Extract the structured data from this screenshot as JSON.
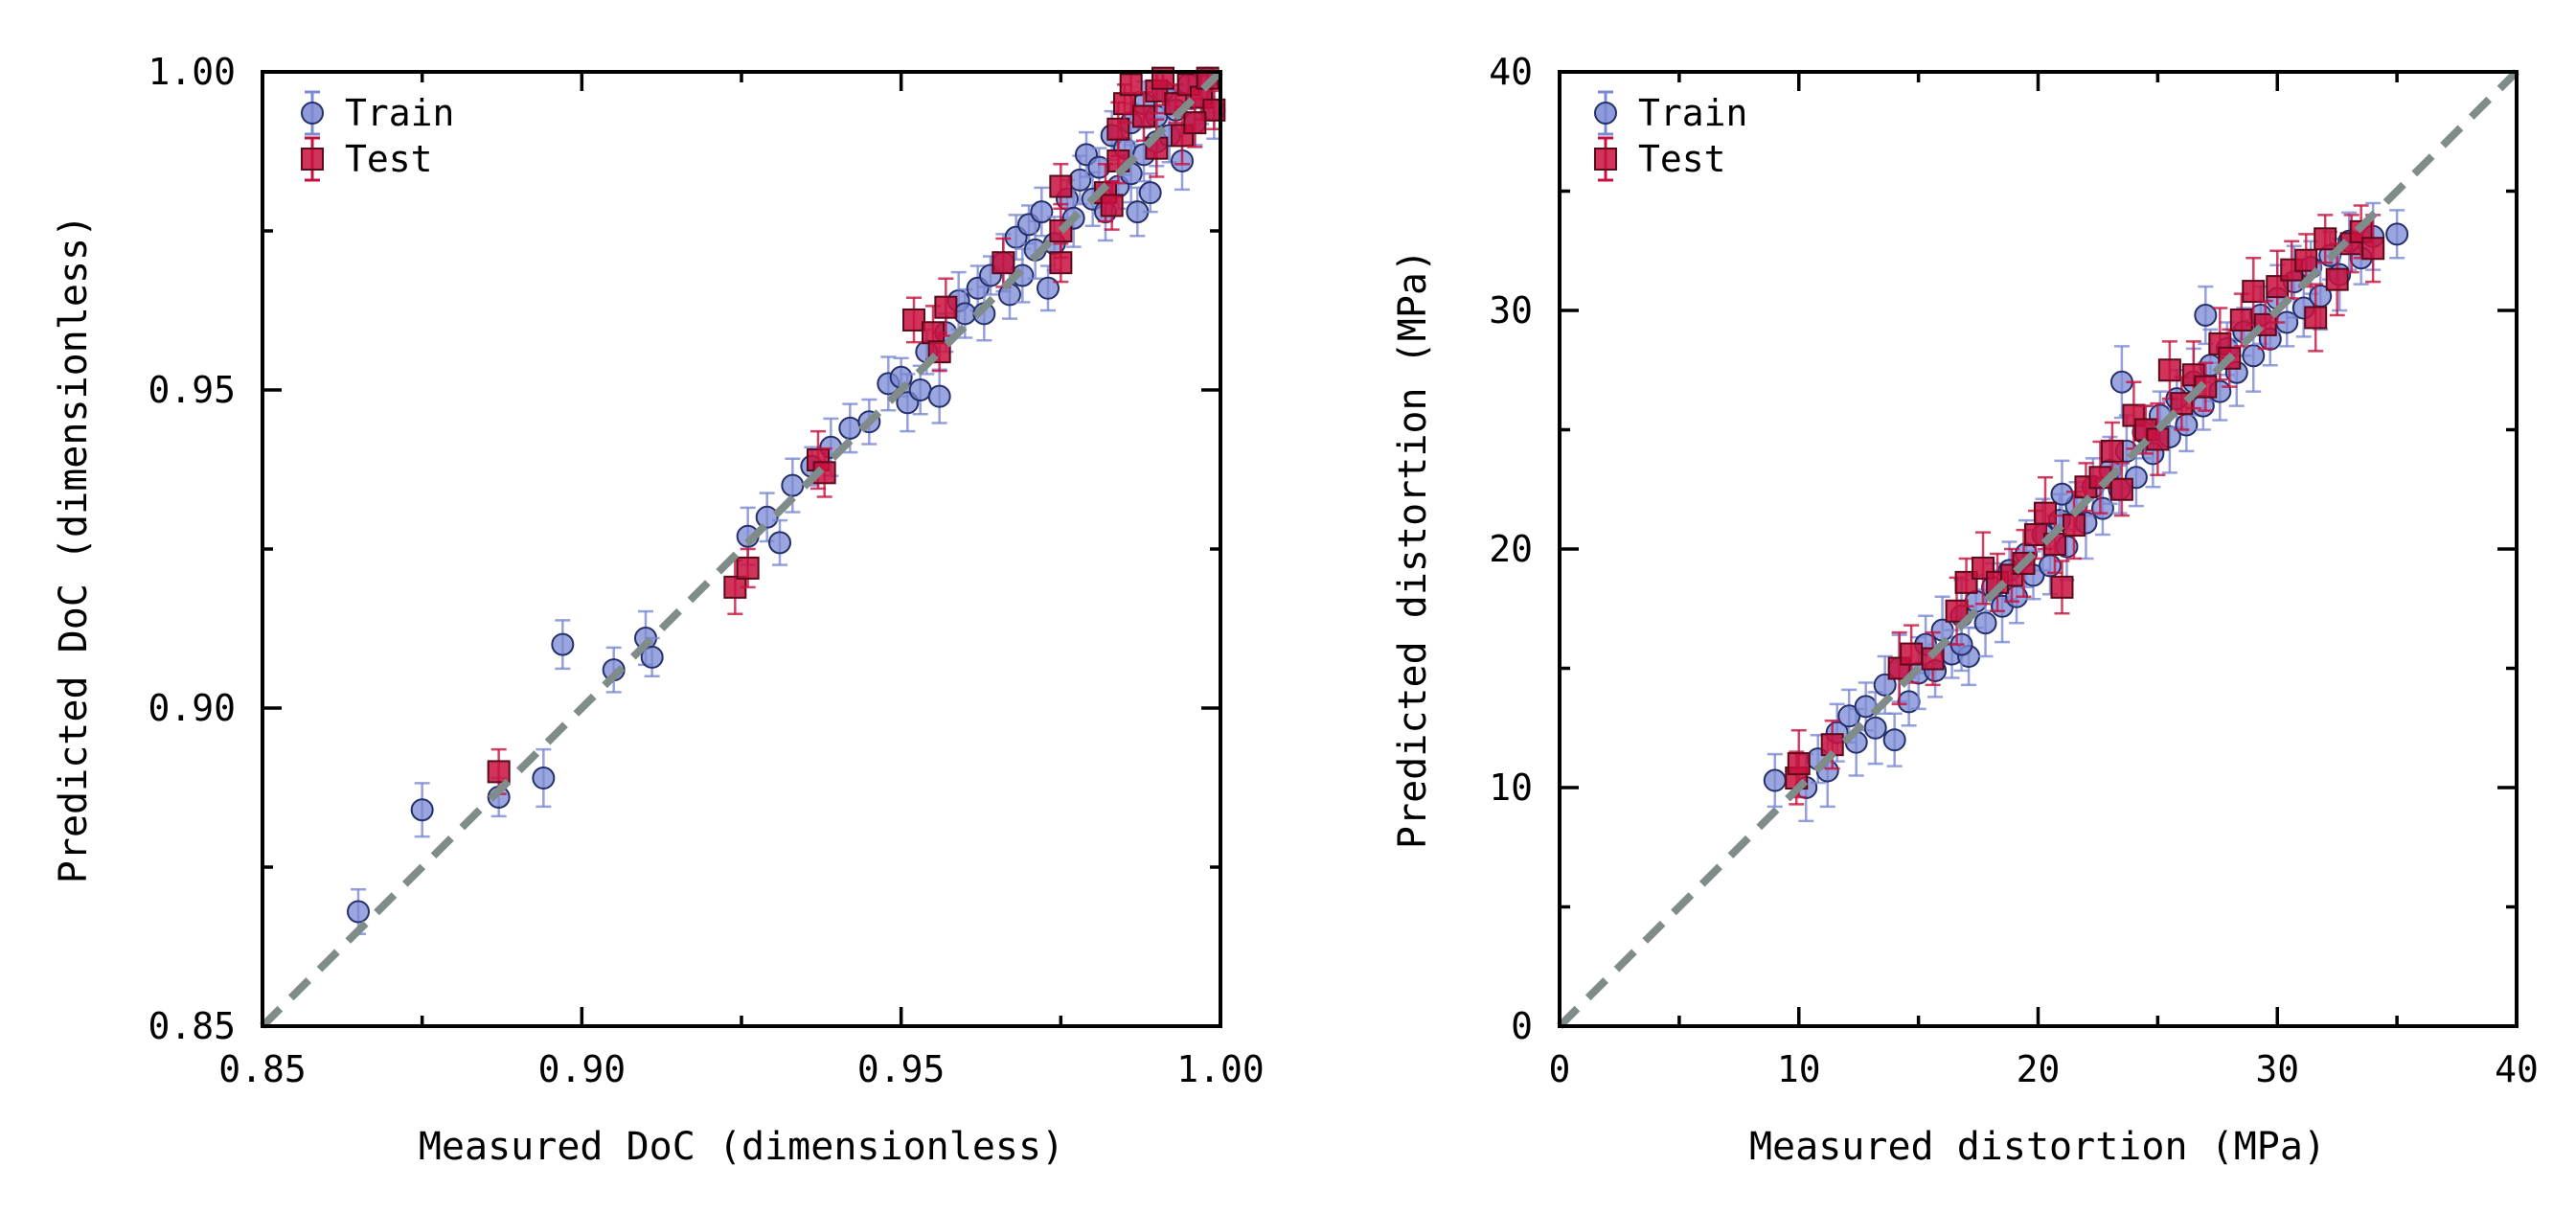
{
  "chart_data": [
    {
      "type": "scatter",
      "xlabel": "Measured DoC (dimensionless)",
      "ylabel": "Predicted DoC (dimensionless)",
      "xlim": [
        0.85,
        1.0
      ],
      "ylim": [
        0.85,
        1.0
      ],
      "xticks": [
        "0.85",
        "0.90",
        "0.95",
        "1.00"
      ],
      "yticks": [
        "0.85",
        "0.90",
        "0.95",
        "1.00"
      ],
      "reference_line": "y = x (dashed)",
      "legend": {
        "placement": "top-left",
        "entries": [
          "Train",
          "Test"
        ]
      },
      "series": [
        {
          "name": "Train",
          "color": "#7b88d3",
          "marker": "circle",
          "points": [
            [
              0.865,
              0.868
            ],
            [
              0.875,
              0.884
            ],
            [
              0.887,
              0.886
            ],
            [
              0.894,
              0.889
            ],
            [
              0.897,
              0.91
            ],
            [
              0.905,
              0.906
            ],
            [
              0.91,
              0.911
            ],
            [
              0.911,
              0.908
            ],
            [
              0.926,
              0.927
            ],
            [
              0.929,
              0.93
            ],
            [
              0.931,
              0.926
            ],
            [
              0.933,
              0.935
            ],
            [
              0.936,
              0.938
            ],
            [
              0.939,
              0.941
            ],
            [
              0.942,
              0.944
            ],
            [
              0.945,
              0.945
            ],
            [
              0.948,
              0.951
            ],
            [
              0.95,
              0.952
            ],
            [
              0.951,
              0.948
            ],
            [
              0.953,
              0.95
            ],
            [
              0.954,
              0.956
            ],
            [
              0.956,
              0.949
            ],
            [
              0.957,
              0.959
            ],
            [
              0.959,
              0.964
            ],
            [
              0.96,
              0.962
            ],
            [
              0.962,
              0.966
            ],
            [
              0.963,
              0.962
            ],
            [
              0.964,
              0.968
            ],
            [
              0.966,
              0.97
            ],
            [
              0.967,
              0.965
            ],
            [
              0.968,
              0.974
            ],
            [
              0.969,
              0.968
            ],
            [
              0.97,
              0.976
            ],
            [
              0.971,
              0.972
            ],
            [
              0.972,
              0.978
            ],
            [
              0.973,
              0.966
            ],
            [
              0.974,
              0.973
            ],
            [
              0.976,
              0.98
            ],
            [
              0.977,
              0.977
            ],
            [
              0.978,
              0.983
            ],
            [
              0.979,
              0.987
            ],
            [
              0.98,
              0.98
            ],
            [
              0.981,
              0.985
            ],
            [
              0.982,
              0.978
            ],
            [
              0.983,
              0.99
            ],
            [
              0.984,
              0.982
            ],
            [
              0.985,
              0.988
            ],
            [
              0.986,
              0.992
            ],
            [
              0.986,
              0.984
            ],
            [
              0.987,
              0.978
            ],
            [
              0.988,
              0.995
            ],
            [
              0.988,
              0.987
            ],
            [
              0.989,
              0.981
            ],
            [
              0.99,
              0.993
            ],
            [
              0.99,
              0.989
            ],
            [
              0.991,
              0.997
            ],
            [
              0.992,
              0.99
            ],
            [
              0.993,
              0.994
            ],
            [
              0.994,
              0.986
            ],
            [
              0.995,
              0.998
            ],
            [
              0.996,
              0.992
            ],
            [
              0.997,
              0.996
            ],
            [
              0.998,
              0.999
            ],
            [
              0.999,
              0.994
            ]
          ]
        },
        {
          "name": "Test",
          "color": "#c8103e",
          "marker": "square",
          "points": [
            [
              0.887,
              0.89
            ],
            [
              0.924,
              0.919
            ],
            [
              0.926,
              0.922
            ],
            [
              0.937,
              0.939
            ],
            [
              0.938,
              0.937
            ],
            [
              0.952,
              0.961
            ],
            [
              0.955,
              0.959
            ],
            [
              0.956,
              0.956
            ],
            [
              0.957,
              0.963
            ],
            [
              0.966,
              0.97
            ],
            [
              0.975,
              0.982
            ],
            [
              0.975,
              0.975
            ],
            [
              0.975,
              0.97
            ],
            [
              0.982,
              0.981
            ],
            [
              0.983,
              0.979
            ],
            [
              0.984,
              0.986
            ],
            [
              0.984,
              0.991
            ],
            [
              0.985,
              0.995
            ],
            [
              0.986,
              0.998
            ],
            [
              0.988,
              0.993
            ],
            [
              0.99,
              0.997
            ],
            [
              0.991,
              0.999
            ],
            [
              0.993,
              0.995
            ],
            [
              0.994,
              0.99
            ],
            [
              0.995,
              0.998
            ],
            [
              0.997,
              0.996
            ],
            [
              0.998,
              0.999
            ],
            [
              0.999,
              0.994
            ],
            [
              0.99,
              0.988
            ],
            [
              0.996,
              0.992
            ]
          ]
        }
      ]
    },
    {
      "type": "scatter",
      "xlabel": "Measured distortion (MPa)",
      "ylabel": "Predicted distortion (MPa)",
      "xlim": [
        0,
        40
      ],
      "ylim": [
        0,
        40
      ],
      "xticks": [
        "0",
        "10",
        "20",
        "30",
        "40"
      ],
      "yticks": [
        "0",
        "10",
        "20",
        "30",
        "40"
      ],
      "reference_line": "y = x (dashed)",
      "legend": {
        "placement": "top-left",
        "entries": [
          "Train",
          "Test"
        ]
      },
      "series": [
        {
          "name": "Train",
          "color": "#7b88d3",
          "marker": "circle",
          "points": [
            [
              9.0,
              10.3
            ],
            [
              10.3,
              10.0
            ],
            [
              10.8,
              11.2
            ],
            [
              11.2,
              10.7
            ],
            [
              11.6,
              12.3
            ],
            [
              12.1,
              13.0
            ],
            [
              12.4,
              11.9
            ],
            [
              12.8,
              13.4
            ],
            [
              13.2,
              12.5
            ],
            [
              13.6,
              14.3
            ],
            [
              14.0,
              12.0
            ],
            [
              14.2,
              15.0
            ],
            [
              14.6,
              13.6
            ],
            [
              15.0,
              14.8
            ],
            [
              15.3,
              16.0
            ],
            [
              15.7,
              14.9
            ],
            [
              16.0,
              16.6
            ],
            [
              16.4,
              15.6
            ],
            [
              16.8,
              17.2
            ],
            [
              17.1,
              15.5
            ],
            [
              17.4,
              17.8
            ],
            [
              17.8,
              16.9
            ],
            [
              18.1,
              18.4
            ],
            [
              18.5,
              17.6
            ],
            [
              18.8,
              19.1
            ],
            [
              19.1,
              18.0
            ],
            [
              19.5,
              19.8
            ],
            [
              19.8,
              18.9
            ],
            [
              20.2,
              20.6
            ],
            [
              20.5,
              19.3
            ],
            [
              20.9,
              21.2
            ],
            [
              21.2,
              20.1
            ],
            [
              21.6,
              21.8
            ],
            [
              22.0,
              21.1
            ],
            [
              22.3,
              22.6
            ],
            [
              22.7,
              21.7
            ],
            [
              23.0,
              23.3
            ],
            [
              23.4,
              22.5
            ],
            [
              23.7,
              24.1
            ],
            [
              24.1,
              23.0
            ],
            [
              24.4,
              24.9
            ],
            [
              24.8,
              24.0
            ],
            [
              25.1,
              25.6
            ],
            [
              25.5,
              24.7
            ],
            [
              25.8,
              26.3
            ],
            [
              26.2,
              25.2
            ],
            [
              26.5,
              27.0
            ],
            [
              26.9,
              26.0
            ],
            [
              27.2,
              27.7
            ],
            [
              27.6,
              26.6
            ],
            [
              27.9,
              28.4
            ],
            [
              28.3,
              27.4
            ],
            [
              28.6,
              29.1
            ],
            [
              29.0,
              28.1
            ],
            [
              29.3,
              29.8
            ],
            [
              29.7,
              28.8
            ],
            [
              30.0,
              30.5
            ],
            [
              30.4,
              29.5
            ],
            [
              30.7,
              31.2
            ],
            [
              31.1,
              30.1
            ],
            [
              31.4,
              31.8
            ],
            [
              31.8,
              30.6
            ],
            [
              32.2,
              32.3
            ],
            [
              32.6,
              31.5
            ],
            [
              33.0,
              32.9
            ],
            [
              33.5,
              32.2
            ],
            [
              34.0,
              33.1
            ],
            [
              35.0,
              33.2
            ],
            [
              23.5,
              27.0
            ],
            [
              27.0,
              29.8
            ],
            [
              16.8,
              16.0
            ],
            [
              21.0,
              22.3
            ]
          ]
        },
        {
          "name": "Test",
          "color": "#c8103e",
          "marker": "square",
          "points": [
            [
              9.9,
              10.4
            ],
            [
              10.0,
              11.0
            ],
            [
              11.4,
              11.8
            ],
            [
              14.2,
              15.0
            ],
            [
              14.7,
              15.6
            ],
            [
              15.6,
              15.4
            ],
            [
              16.6,
              17.4
            ],
            [
              17.0,
              18.6
            ],
            [
              17.7,
              19.2
            ],
            [
              18.3,
              18.6
            ],
            [
              18.9,
              18.9
            ],
            [
              19.4,
              19.4
            ],
            [
              19.9,
              20.6
            ],
            [
              20.3,
              21.5
            ],
            [
              20.7,
              20.2
            ],
            [
              21.0,
              18.4
            ],
            [
              21.5,
              21.0
            ],
            [
              22.0,
              22.6
            ],
            [
              22.6,
              23.0
            ],
            [
              23.1,
              24.1
            ],
            [
              23.5,
              22.5
            ],
            [
              24.0,
              25.6
            ],
            [
              24.5,
              25.0
            ],
            [
              25.0,
              24.6
            ],
            [
              25.5,
              27.5
            ],
            [
              26.0,
              26.1
            ],
            [
              26.5,
              27.3
            ],
            [
              27.0,
              26.8
            ],
            [
              27.6,
              28.6
            ],
            [
              28.0,
              28.0
            ],
            [
              28.5,
              29.6
            ],
            [
              29.0,
              30.8
            ],
            [
              29.5,
              29.4
            ],
            [
              30.0,
              31.0
            ],
            [
              30.6,
              31.7
            ],
            [
              31.2,
              32.1
            ],
            [
              31.6,
              29.7
            ],
            [
              32.0,
              33.0
            ],
            [
              32.5,
              31.3
            ],
            [
              33.1,
              32.8
            ],
            [
              33.5,
              33.3
            ],
            [
              34.0,
              32.6
            ]
          ]
        }
      ]
    }
  ]
}
